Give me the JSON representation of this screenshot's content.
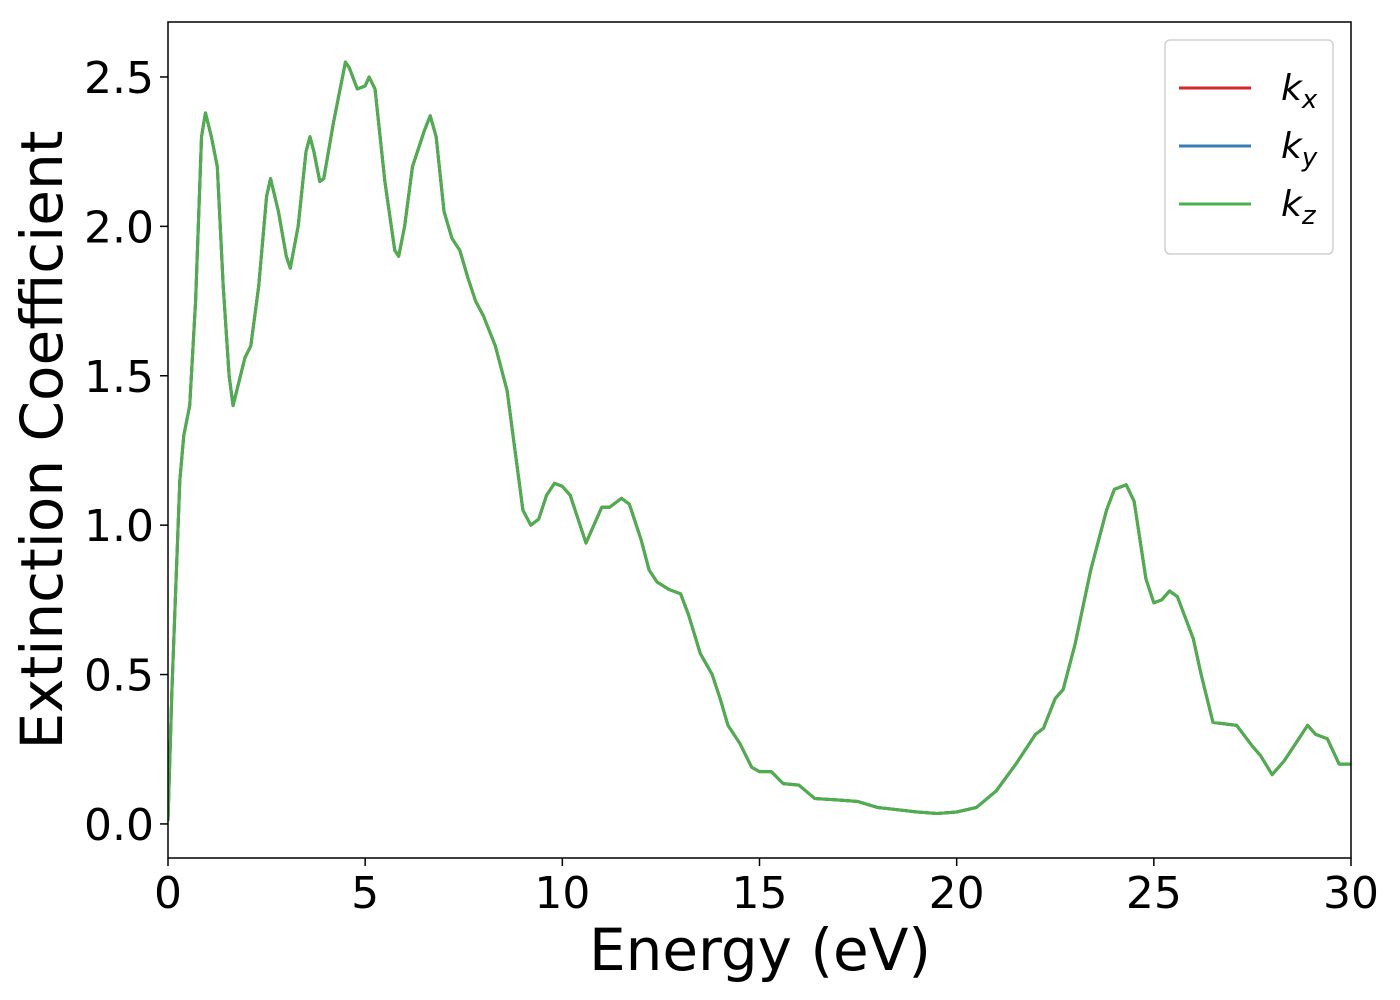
{
  "chart_data": {
    "type": "line",
    "xlabel": "Energy (eV)",
    "ylabel": "Extinction Coefficient",
    "xlim": [
      0,
      30
    ],
    "ylim": [
      -0.114,
      2.684
    ],
    "xticks": [
      0,
      5,
      10,
      15,
      20,
      25,
      30
    ],
    "yticks": [
      {
        "value": 0,
        "label": "0.0"
      },
      0.5,
      {
        "value": 1,
        "label": "1.0"
      },
      1.5,
      {
        "value": 2,
        "label": "2.0"
      },
      2.5
    ],
    "legend": "upper right",
    "grid": false,
    "x": [
      0,
      0.1,
      0.3,
      0.4,
      0.55,
      0.7,
      0.85,
      0.95,
      1.1,
      1.25,
      1.4,
      1.55,
      1.65,
      1.8,
      1.95,
      2.1,
      2.3,
      2.5,
      2.6,
      2.8,
      3.0,
      3.1,
      3.3,
      3.5,
      3.6,
      3.7,
      3.85,
      3.95,
      4.2,
      4.5,
      4.6,
      4.8,
      5.0,
      5.1,
      5.25,
      5.5,
      5.75,
      5.85,
      6.0,
      6.2,
      6.5,
      6.65,
      6.8,
      7.0,
      7.2,
      7.4,
      7.6,
      7.8,
      8.0,
      8.3,
      8.6,
      8.8,
      9.0,
      9.2,
      9.4,
      9.6,
      9.8,
      10.0,
      10.2,
      10.4,
      10.6,
      10.8,
      11.0,
      11.2,
      11.5,
      11.7,
      12.0,
      12.2,
      12.4,
      12.7,
      13.0,
      13.2,
      13.5,
      13.8,
      14.0,
      14.2,
      14.5,
      14.8,
      15.0,
      15.3,
      15.6,
      16.0,
      16.4,
      17.0,
      17.5,
      18.0,
      19.0,
      19.5,
      20.0,
      20.5,
      21.0,
      21.5,
      22.0,
      22.2,
      22.5,
      22.7,
      23.0,
      23.4,
      23.8,
      24.0,
      24.3,
      24.5,
      24.8,
      25.0,
      25.2,
      25.4,
      25.6,
      26.0,
      26.2,
      26.5,
      26.8,
      27.1,
      27.5,
      27.7,
      28.0,
      28.3,
      28.6,
      28.9,
      29.1,
      29.4,
      29.7,
      30.0
    ],
    "series": [
      {
        "name": "kx",
        "color": "#d62728",
        "values": [
          0.01,
          0.45,
          1.15,
          1.3,
          1.4,
          1.75,
          2.3,
          2.38,
          2.3,
          2.2,
          1.8,
          1.5,
          1.4,
          1.48,
          1.56,
          1.6,
          1.8,
          2.1,
          2.16,
          2.05,
          1.9,
          1.86,
          2.0,
          2.25,
          2.3,
          2.25,
          2.15,
          2.16,
          2.35,
          2.55,
          2.53,
          2.46,
          2.47,
          2.5,
          2.46,
          2.15,
          1.92,
          1.9,
          2.0,
          2.2,
          2.32,
          2.37,
          2.3,
          2.05,
          1.96,
          1.92,
          1.83,
          1.75,
          1.7,
          1.6,
          1.45,
          1.25,
          1.05,
          1.0,
          1.02,
          1.1,
          1.14,
          1.13,
          1.1,
          1.02,
          0.94,
          1.0,
          1.06,
          1.06,
          1.09,
          1.07,
          0.95,
          0.85,
          0.81,
          0.785,
          0.77,
          0.7,
          0.57,
          0.5,
          0.42,
          0.33,
          0.27,
          0.19,
          0.175,
          0.175,
          0.135,
          0.13,
          0.085,
          0.08,
          0.075,
          0.055,
          0.04,
          0.035,
          0.04,
          0.055,
          0.11,
          0.2,
          0.3,
          0.32,
          0.42,
          0.45,
          0.6,
          0.85,
          1.05,
          1.12,
          1.135,
          1.08,
          0.82,
          0.74,
          0.75,
          0.78,
          0.76,
          0.62,
          0.5,
          0.34,
          0.335,
          0.33,
          0.26,
          0.23,
          0.165,
          0.21,
          0.27,
          0.33,
          0.3,
          0.285,
          0.2,
          0.2
        ]
      },
      {
        "name": "ky",
        "color": "#377eb8",
        "values": [
          0.01,
          0.45,
          1.15,
          1.3,
          1.4,
          1.75,
          2.3,
          2.38,
          2.3,
          2.2,
          1.8,
          1.5,
          1.4,
          1.48,
          1.56,
          1.6,
          1.8,
          2.1,
          2.16,
          2.05,
          1.9,
          1.86,
          2.0,
          2.25,
          2.3,
          2.25,
          2.15,
          2.16,
          2.35,
          2.55,
          2.53,
          2.46,
          2.47,
          2.5,
          2.46,
          2.15,
          1.92,
          1.9,
          2.0,
          2.2,
          2.32,
          2.37,
          2.3,
          2.05,
          1.96,
          1.92,
          1.83,
          1.75,
          1.7,
          1.6,
          1.45,
          1.25,
          1.05,
          1.0,
          1.02,
          1.1,
          1.14,
          1.13,
          1.1,
          1.02,
          0.94,
          1.0,
          1.06,
          1.06,
          1.09,
          1.07,
          0.95,
          0.85,
          0.81,
          0.785,
          0.77,
          0.7,
          0.57,
          0.5,
          0.42,
          0.33,
          0.27,
          0.19,
          0.175,
          0.175,
          0.135,
          0.13,
          0.085,
          0.08,
          0.075,
          0.055,
          0.04,
          0.035,
          0.04,
          0.055,
          0.11,
          0.2,
          0.3,
          0.32,
          0.42,
          0.45,
          0.6,
          0.85,
          1.05,
          1.12,
          1.135,
          1.08,
          0.82,
          0.74,
          0.75,
          0.78,
          0.76,
          0.62,
          0.5,
          0.34,
          0.335,
          0.33,
          0.26,
          0.23,
          0.165,
          0.21,
          0.27,
          0.33,
          0.3,
          0.285,
          0.2,
          0.2
        ]
      },
      {
        "name": "kz",
        "color": "#4daf4a",
        "values": [
          0.01,
          0.45,
          1.15,
          1.3,
          1.4,
          1.75,
          2.3,
          2.38,
          2.3,
          2.2,
          1.8,
          1.5,
          1.4,
          1.48,
          1.56,
          1.6,
          1.8,
          2.1,
          2.16,
          2.05,
          1.9,
          1.86,
          2.0,
          2.25,
          2.3,
          2.25,
          2.15,
          2.16,
          2.35,
          2.55,
          2.53,
          2.46,
          2.47,
          2.5,
          2.46,
          2.15,
          1.92,
          1.9,
          2.0,
          2.2,
          2.32,
          2.37,
          2.3,
          2.05,
          1.96,
          1.92,
          1.83,
          1.75,
          1.7,
          1.6,
          1.45,
          1.25,
          1.05,
          1.0,
          1.02,
          1.1,
          1.14,
          1.13,
          1.1,
          1.02,
          0.94,
          1.0,
          1.06,
          1.06,
          1.09,
          1.07,
          0.95,
          0.85,
          0.81,
          0.785,
          0.77,
          0.7,
          0.57,
          0.5,
          0.42,
          0.33,
          0.27,
          0.19,
          0.175,
          0.175,
          0.135,
          0.13,
          0.085,
          0.08,
          0.075,
          0.055,
          0.04,
          0.035,
          0.04,
          0.055,
          0.11,
          0.2,
          0.3,
          0.32,
          0.42,
          0.45,
          0.6,
          0.85,
          1.05,
          1.12,
          1.135,
          1.08,
          0.82,
          0.74,
          0.75,
          0.78,
          0.76,
          0.62,
          0.5,
          0.34,
          0.335,
          0.33,
          0.26,
          0.23,
          0.165,
          0.21,
          0.27,
          0.33,
          0.3,
          0.285,
          0.2,
          0.2
        ]
      }
    ]
  }
}
